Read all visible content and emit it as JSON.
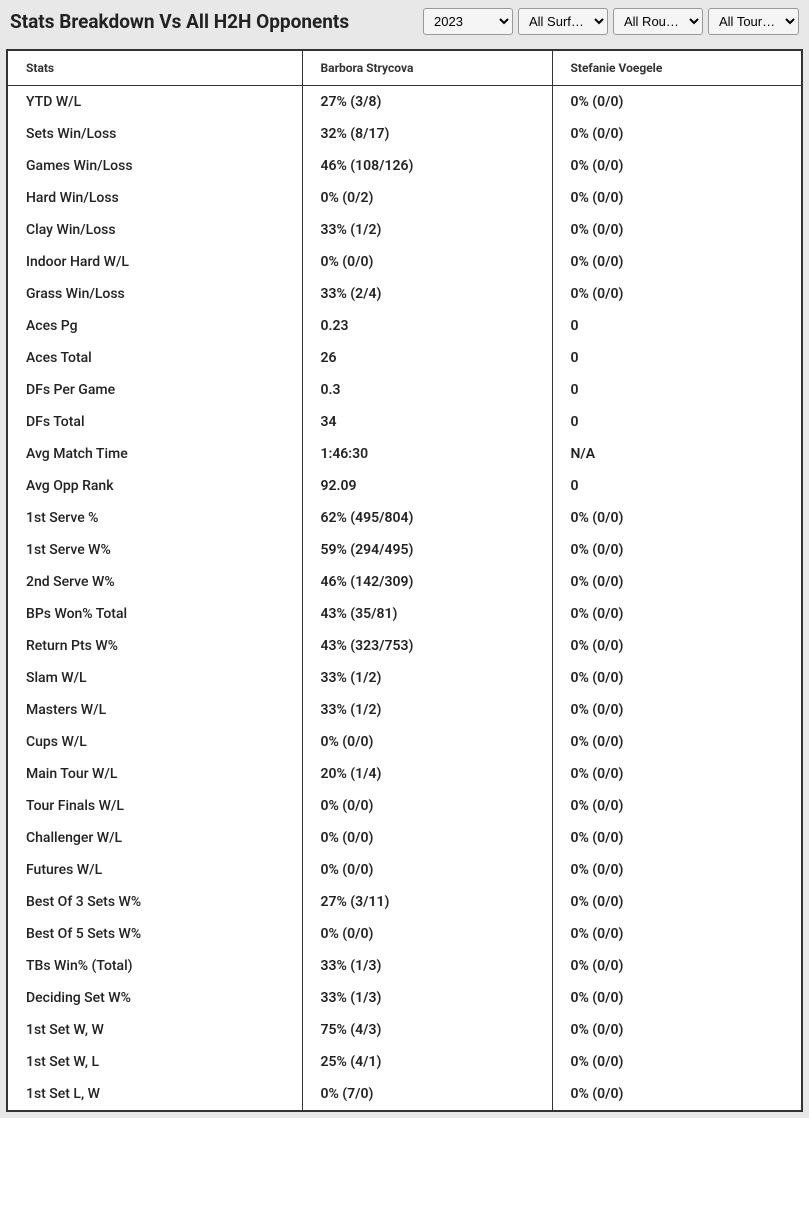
{
  "title": "Stats Breakdown Vs All H2H Opponents",
  "filters": {
    "year": "2023",
    "surface": "All Surf…",
    "round": "All Rou…",
    "tour": "All Tour…"
  },
  "columns": {
    "stats": "Stats",
    "player1": "Barbora Strycova",
    "player2": "Stefanie Voegele"
  },
  "rows": [
    {
      "label": "YTD W/L",
      "p1": "27% (3/8)",
      "p2": "0% (0/0)"
    },
    {
      "label": "Sets Win/Loss",
      "p1": "32% (8/17)",
      "p2": "0% (0/0)"
    },
    {
      "label": "Games Win/Loss",
      "p1": "46% (108/126)",
      "p2": "0% (0/0)"
    },
    {
      "label": "Hard Win/Loss",
      "p1": "0% (0/2)",
      "p2": "0% (0/0)"
    },
    {
      "label": "Clay Win/Loss",
      "p1": "33% (1/2)",
      "p2": "0% (0/0)"
    },
    {
      "label": "Indoor Hard W/L",
      "p1": "0% (0/0)",
      "p2": "0% (0/0)"
    },
    {
      "label": "Grass Win/Loss",
      "p1": "33% (2/4)",
      "p2": "0% (0/0)"
    },
    {
      "label": "Aces Pg",
      "p1": "0.23",
      "p2": "0"
    },
    {
      "label": "Aces Total",
      "p1": "26",
      "p2": "0"
    },
    {
      "label": "DFs Per Game",
      "p1": "0.3",
      "p2": "0"
    },
    {
      "label": "DFs Total",
      "p1": "34",
      "p2": "0"
    },
    {
      "label": "Avg Match Time",
      "p1": "1:46:30",
      "p2": "N/A"
    },
    {
      "label": "Avg Opp Rank",
      "p1": "92.09",
      "p2": "0"
    },
    {
      "label": "1st Serve %",
      "p1": "62% (495/804)",
      "p2": "0% (0/0)"
    },
    {
      "label": "1st Serve W%",
      "p1": "59% (294/495)",
      "p2": "0% (0/0)"
    },
    {
      "label": "2nd Serve W%",
      "p1": "46% (142/309)",
      "p2": "0% (0/0)"
    },
    {
      "label": "BPs Won% Total",
      "p1": "43% (35/81)",
      "p2": "0% (0/0)"
    },
    {
      "label": "Return Pts W%",
      "p1": "43% (323/753)",
      "p2": "0% (0/0)"
    },
    {
      "label": "Slam W/L",
      "p1": "33% (1/2)",
      "p2": "0% (0/0)"
    },
    {
      "label": "Masters W/L",
      "p1": "33% (1/2)",
      "p2": "0% (0/0)"
    },
    {
      "label": "Cups W/L",
      "p1": "0% (0/0)",
      "p2": "0% (0/0)"
    },
    {
      "label": "Main Tour W/L",
      "p1": "20% (1/4)",
      "p2": "0% (0/0)"
    },
    {
      "label": "Tour Finals W/L",
      "p1": "0% (0/0)",
      "p2": "0% (0/0)"
    },
    {
      "label": "Challenger W/L",
      "p1": "0% (0/0)",
      "p2": "0% (0/0)"
    },
    {
      "label": "Futures W/L",
      "p1": "0% (0/0)",
      "p2": "0% (0/0)"
    },
    {
      "label": "Best Of 3 Sets W%",
      "p1": "27% (3/11)",
      "p2": "0% (0/0)"
    },
    {
      "label": "Best Of 5 Sets W%",
      "p1": "0% (0/0)",
      "p2": "0% (0/0)"
    },
    {
      "label": "TBs Win% (Total)",
      "p1": "33% (1/3)",
      "p2": "0% (0/0)"
    },
    {
      "label": "Deciding Set W%",
      "p1": "33% (1/3)",
      "p2": "0% (0/0)"
    },
    {
      "label": "1st Set W, W",
      "p1": "75% (4/3)",
      "p2": "0% (0/0)"
    },
    {
      "label": "1st Set W, L",
      "p1": "25% (4/1)",
      "p2": "0% (0/0)"
    },
    {
      "label": "1st Set L, W",
      "p1": "0% (7/0)",
      "p2": "0% (0/0)"
    }
  ]
}
